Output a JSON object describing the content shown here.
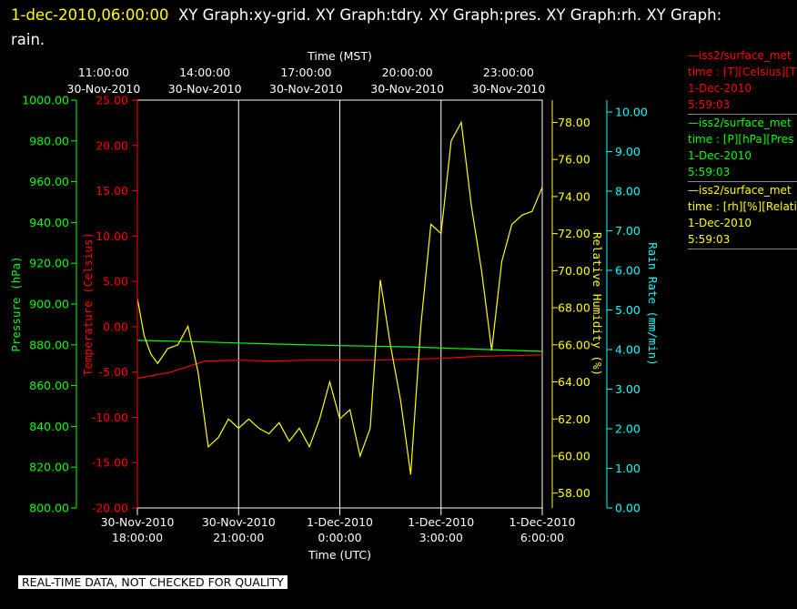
{
  "header": {
    "timestamp": "1-dec-2010,06:00:00",
    "graph_names": "XY Graph:xy-grid.  XY Graph:tdry.  XY Graph:pres.  XY Graph:rh.  XY Graph:",
    "graph_names_cont": "rain."
  },
  "footer": {
    "note": "REAL-TIME DATA, NOT CHECKED FOR QUALITY"
  },
  "legend": [
    {
      "name": "—iss2/surface_met",
      "units": "time : [T][Celsius][T",
      "date": "1-Dec-2010",
      "time": "5:59:03",
      "color": "#ff0000"
    },
    {
      "name": "—iss2/surface_met",
      "units": "time : [P][hPa][Pres",
      "date": "1-Dec-2010",
      "time": "5:59:03",
      "color": "#00ff00"
    },
    {
      "name": "—iss2/surface_met",
      "units": "time : [rh][%][Relati",
      "date": "1-Dec-2010",
      "time": "5:59:03",
      "color": "#ffff00"
    }
  ],
  "chart_data": {
    "type": "line",
    "top_axis": {
      "label": "Time (MST)",
      "ticks": [
        {
          "time": "11:00:00",
          "date": "30-Nov-2010"
        },
        {
          "time": "14:00:00",
          "date": "30-Nov-2010"
        },
        {
          "time": "17:00:00",
          "date": "30-Nov-2010"
        },
        {
          "time": "20:00:00",
          "date": "30-Nov-2010"
        },
        {
          "time": "23:00:00",
          "date": "30-Nov-2010"
        }
      ]
    },
    "bottom_axis": {
      "label": "Time (UTC)",
      "range_hours": [
        0,
        12
      ],
      "ticks": [
        {
          "date": "30-Nov-2010",
          "time": "18:00:00"
        },
        {
          "date": "30-Nov-2010",
          "time": "21:00:00"
        },
        {
          "date": "1-Dec-2010",
          "time": "0:00:00"
        },
        {
          "date": "1-Dec-2010",
          "time": "3:00:00"
        },
        {
          "date": "1-Dec-2010",
          "time": "6:00:00"
        }
      ]
    },
    "axes": {
      "pressure": {
        "label": "Pressure (hPa)",
        "min": 800,
        "max": 1000,
        "color": "#00ff00",
        "ticks": [
          "800.00",
          "820.00",
          "840.00",
          "860.00",
          "880.00",
          "900.00",
          "920.00",
          "940.00",
          "960.00",
          "980.00",
          "1000.00"
        ]
      },
      "temperature": {
        "label": "Temperature (Celsius)",
        "min": -20,
        "max": 25,
        "color": "#ff0000",
        "ticks": [
          "-20.00",
          "-15.00",
          "-10.00",
          "-5.00",
          "0.00",
          "5.00",
          "10.00",
          "15.00",
          "20.00",
          "25.00"
        ]
      },
      "humidity": {
        "label": "Relative Humidity (%)",
        "min": 57.2,
        "max": 79.2,
        "color": "#ffff00",
        "ticks": [
          "58.00",
          "60.00",
          "62.00",
          "64.00",
          "66.00",
          "68.00",
          "70.00",
          "72.00",
          "74.00",
          "76.00",
          "78.00"
        ]
      },
      "rain": {
        "label": "Rain Rate (mm/min)",
        "min": 0,
        "max": 10.3,
        "color": "#00ffff",
        "ticks": [
          "0.00",
          "1.00",
          "2.00",
          "3.00",
          "4.00",
          "5.00",
          "6.00",
          "7.00",
          "8.00",
          "9.00",
          "10.00"
        ]
      }
    },
    "grid": true,
    "series": [
      {
        "name": "Temperature",
        "axis": "temperature",
        "x": [
          0,
          1,
          2,
          3,
          4,
          5,
          6,
          7,
          8,
          9,
          10,
          11,
          12
        ],
        "y": [
          -5.7,
          -5.0,
          -3.8,
          -3.7,
          -3.8,
          -3.7,
          -3.7,
          -3.7,
          -3.6,
          -3.5,
          -3.3,
          -3.2,
          -3.1
        ]
      },
      {
        "name": "Pressure",
        "axis": "pressure",
        "x": [
          0,
          2,
          4,
          6,
          8,
          10,
          12
        ],
        "y": [
          882.2,
          881.4,
          880.4,
          879.6,
          879.0,
          877.9,
          876.8
        ]
      },
      {
        "name": "Relative Humidity",
        "axis": "humidity",
        "x": [
          0,
          0.2,
          0.4,
          0.6,
          0.9,
          1.2,
          1.5,
          1.8,
          2.1,
          2.4,
          2.7,
          3.0,
          3.3,
          3.6,
          3.9,
          4.2,
          4.5,
          4.8,
          5.1,
          5.4,
          5.7,
          6.0,
          6.3,
          6.6,
          6.9,
          7.2,
          7.5,
          7.8,
          8.1,
          8.4,
          8.7,
          9.0,
          9.3,
          9.6,
          9.9,
          10.2,
          10.5,
          10.8,
          11.1,
          11.4,
          11.7,
          12.0
        ],
        "y": [
          68.5,
          66.5,
          65.5,
          65.0,
          65.8,
          66.0,
          67.0,
          64.5,
          60.5,
          61.0,
          62.0,
          61.5,
          62.0,
          61.5,
          61.2,
          61.8,
          60.8,
          61.5,
          60.5,
          62.0,
          64.0,
          62.0,
          62.5,
          60.0,
          61.5,
          69.5,
          66.0,
          63.0,
          59.0,
          67.0,
          72.5,
          72.0,
          77.0,
          78.0,
          73.5,
          70.0,
          65.7,
          70.5,
          72.5,
          73.0,
          73.2,
          74.5
        ]
      }
    ]
  }
}
